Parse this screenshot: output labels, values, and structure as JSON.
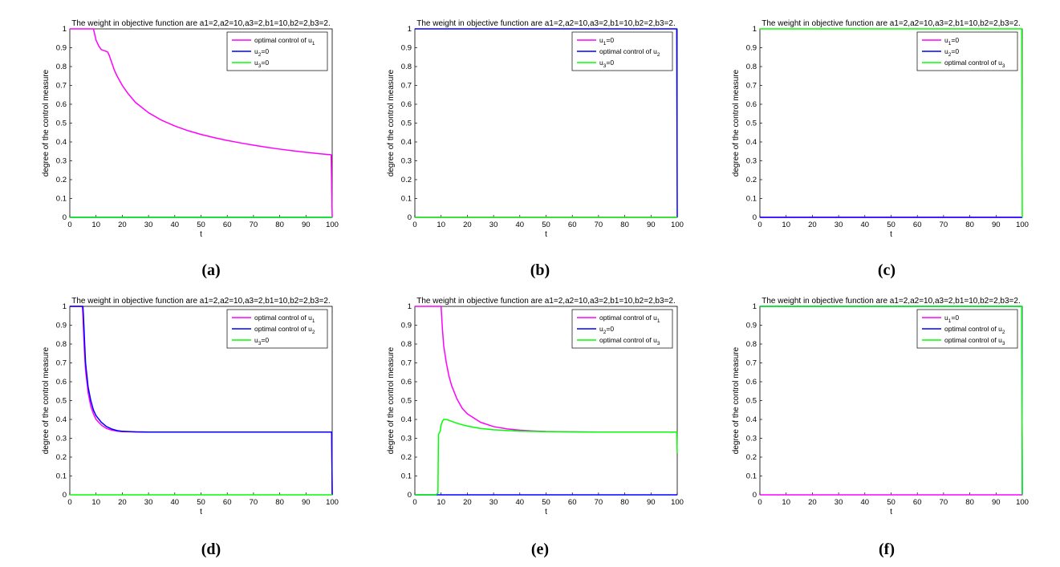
{
  "chart_data": [
    {
      "type": "line",
      "caption": "(a)",
      "title": "The weight in objective function are a1=2,a2=10,a3=2,b1=10,b2=2,b3=2.",
      "xlabel": "t",
      "ylabel": "degree of the control measure",
      "xlim": [
        0,
        100
      ],
      "ylim": [
        0,
        1
      ],
      "xticks": [
        "0",
        "10",
        "20",
        "30",
        "40",
        "50",
        "60",
        "70",
        "80",
        "90",
        "100"
      ],
      "yticks": [
        "0",
        "0.1",
        "0.2",
        "0.3",
        "0.4",
        "0.5",
        "0.6",
        "0.7",
        "0.8",
        "0.9",
        "1"
      ],
      "legend_position": "top-right",
      "series": [
        {
          "name": "optimal control of u1",
          "label": "optimal control of u",
          "sub": "1",
          "color": "#ff00ff",
          "points": [
            [
              0,
              1
            ],
            [
              9,
              1
            ],
            [
              10,
              0.94
            ],
            [
              11,
              0.91
            ],
            [
              12,
              0.89
            ],
            [
              13,
              0.885
            ],
            [
              14,
              0.88
            ],
            [
              14.5,
              0.876
            ],
            [
              15,
              0.86
            ],
            [
              16,
              0.82
            ],
            [
              17,
              0.78
            ],
            [
              18,
              0.75
            ],
            [
              20,
              0.7
            ],
            [
              22,
              0.66
            ],
            [
              25,
              0.61
            ],
            [
              30,
              0.555
            ],
            [
              35,
              0.515
            ],
            [
              40,
              0.485
            ],
            [
              45,
              0.46
            ],
            [
              50,
              0.44
            ],
            [
              55,
              0.423
            ],
            [
              60,
              0.408
            ],
            [
              65,
              0.395
            ],
            [
              70,
              0.383
            ],
            [
              75,
              0.372
            ],
            [
              80,
              0.362
            ],
            [
              85,
              0.353
            ],
            [
              90,
              0.345
            ],
            [
              95,
              0.338
            ],
            [
              99.6,
              0.332
            ],
            [
              100,
              0
            ]
          ]
        },
        {
          "name": "u2=0",
          "label": "u",
          "sub": "2",
          "suffix": "=0",
          "color": "#0000ff",
          "points": [
            [
              0,
              0
            ],
            [
              100,
              0
            ]
          ]
        },
        {
          "name": "u3=0",
          "label": "u",
          "sub": "3",
          "suffix": "=0",
          "color": "#00ff00",
          "points": [
            [
              0,
              0
            ],
            [
              100,
              0
            ]
          ]
        }
      ]
    },
    {
      "type": "line",
      "caption": "(b)",
      "title": "The weight in objective function are a1=2,a2=10,a3=2,b1=10,b2=2,b3=2.",
      "xlabel": "t",
      "ylabel": "degree of the control measure",
      "xlim": [
        0,
        100
      ],
      "ylim": [
        0,
        1
      ],
      "xticks": [
        "0",
        "10",
        "20",
        "30",
        "40",
        "50",
        "60",
        "70",
        "80",
        "90",
        "100"
      ],
      "yticks": [
        "0",
        "0.1",
        "0.2",
        "0.3",
        "0.4",
        "0.5",
        "0.6",
        "0.7",
        "0.8",
        "0.9",
        "1"
      ],
      "legend_position": "top-right",
      "series": [
        {
          "name": "u1=0",
          "label": "u",
          "sub": "1",
          "suffix": "=0",
          "color": "#ff00ff",
          "points": [
            [
              0,
              0
            ],
            [
              100,
              0
            ]
          ]
        },
        {
          "name": "optimal control of u2",
          "label": "optimal control of u",
          "sub": "2",
          "color": "#0000ff",
          "points": [
            [
              0,
              1
            ],
            [
              99.8,
              1
            ],
            [
              100,
              0
            ]
          ]
        },
        {
          "name": "u3=0",
          "label": "u",
          "sub": "3",
          "suffix": "=0",
          "color": "#00ff00",
          "points": [
            [
              0,
              0
            ],
            [
              100,
              0
            ]
          ]
        }
      ]
    },
    {
      "type": "line",
      "caption": "(c)",
      "title": "The weight in objective function are a1=2,a2=10,a3=2,b1=10,b2=2,b3=2.",
      "xlabel": "t",
      "ylabel": "degree of the control measure",
      "xlim": [
        0,
        100
      ],
      "ylim": [
        0,
        1
      ],
      "xticks": [
        "0",
        "10",
        "20",
        "30",
        "40",
        "50",
        "60",
        "70",
        "80",
        "90",
        "100"
      ],
      "yticks": [
        "0",
        "0.1",
        "0.2",
        "0.3",
        "0.4",
        "0.5",
        "0.6",
        "0.7",
        "0.8",
        "0.9",
        "1"
      ],
      "legend_position": "top-right",
      "series": [
        {
          "name": "u1=0",
          "label": "u",
          "sub": "1",
          "suffix": "=0",
          "color": "#ff00ff",
          "points": [
            [
              0,
              0
            ],
            [
              100,
              0
            ]
          ]
        },
        {
          "name": "u2=0",
          "label": "u",
          "sub": "2",
          "suffix": "=0",
          "color": "#0000ff",
          "points": [
            [
              0,
              0
            ],
            [
              100,
              0
            ]
          ]
        },
        {
          "name": "optimal control of u3",
          "label": "optimal control of u",
          "sub": "3",
          "color": "#00ff00",
          "points": [
            [
              0,
              1
            ],
            [
              99.8,
              1
            ],
            [
              100,
              0
            ]
          ]
        }
      ]
    },
    {
      "type": "line",
      "caption": "(d)",
      "title": "The weight in objective function are a1=2,a2=10,a3=2,b1=10,b2=2,b3=2.",
      "xlabel": "t",
      "ylabel": "degree of the control measure",
      "xlim": [
        0,
        100
      ],
      "ylim": [
        0,
        1
      ],
      "xticks": [
        "0",
        "10",
        "20",
        "30",
        "40",
        "50",
        "60",
        "70",
        "80",
        "90",
        "100"
      ],
      "yticks": [
        "0",
        "0.1",
        "0.2",
        "0.3",
        "0.4",
        "0.5",
        "0.6",
        "0.7",
        "0.8",
        "0.9",
        "1"
      ],
      "legend_position": "top-right",
      "series": [
        {
          "name": "optimal control of u1",
          "label": "optimal control of u",
          "sub": "1",
          "color": "#ff00ff",
          "points": [
            [
              0,
              1
            ],
            [
              4.8,
              1
            ],
            [
              5,
              0.95
            ],
            [
              5.5,
              0.78
            ],
            [
              6,
              0.66
            ],
            [
              7,
              0.54
            ],
            [
              8,
              0.47
            ],
            [
              9,
              0.43
            ],
            [
              10,
              0.4
            ],
            [
              12,
              0.37
            ],
            [
              14,
              0.352
            ],
            [
              16,
              0.343
            ],
            [
              18,
              0.338
            ],
            [
              20,
              0.335
            ],
            [
              25,
              0.334
            ],
            [
              30,
              0.333
            ],
            [
              99.8,
              0.333
            ],
            [
              100,
              0
            ]
          ]
        },
        {
          "name": "optimal control of u2",
          "label": "optimal control of u",
          "sub": "2",
          "color": "#0000ff",
          "points": [
            [
              0,
              1
            ],
            [
              5,
              1
            ],
            [
              5.2,
              0.95
            ],
            [
              5.7,
              0.79
            ],
            [
              6,
              0.7
            ],
            [
              7,
              0.57
            ],
            [
              8,
              0.5
            ],
            [
              9,
              0.45
            ],
            [
              10,
              0.42
            ],
            [
              12,
              0.385
            ],
            [
              14,
              0.362
            ],
            [
              16,
              0.349
            ],
            [
              18,
              0.341
            ],
            [
              20,
              0.337
            ],
            [
              25,
              0.334
            ],
            [
              30,
              0.333
            ],
            [
              99.8,
              0.333
            ],
            [
              100,
              0
            ]
          ]
        },
        {
          "name": "u3=0",
          "label": "u",
          "sub": "3",
          "suffix": "=0",
          "color": "#00ff00",
          "points": [
            [
              0,
              0
            ],
            [
              100,
              0
            ]
          ]
        }
      ]
    },
    {
      "type": "line",
      "caption": "(e)",
      "title": "The weight in objective function are a1=2,a2=10,a3=2,b1=10,b2=2,b3=2.",
      "xlabel": "t",
      "ylabel": "degree of the control measure",
      "xlim": [
        0,
        100
      ],
      "ylim": [
        0,
        1
      ],
      "xticks": [
        "0",
        "10",
        "20",
        "30",
        "40",
        "50",
        "60",
        "70",
        "80",
        "90",
        "100"
      ],
      "yticks": [
        "0",
        "0.1",
        "0.2",
        "0.3",
        "0.4",
        "0.5",
        "0.6",
        "0.7",
        "0.8",
        "0.9",
        "1"
      ],
      "legend_position": "top-right",
      "series": [
        {
          "name": "optimal control of u1",
          "label": "optimal control of u",
          "sub": "1",
          "color": "#ff00ff",
          "points": [
            [
              0,
              1
            ],
            [
              10,
              1
            ],
            [
              10.5,
              0.88
            ],
            [
              11,
              0.79
            ],
            [
              12,
              0.7
            ],
            [
              13,
              0.63
            ],
            [
              14,
              0.58
            ],
            [
              16,
              0.51
            ],
            [
              18,
              0.46
            ],
            [
              20,
              0.43
            ],
            [
              25,
              0.385
            ],
            [
              30,
              0.362
            ],
            [
              35,
              0.35
            ],
            [
              40,
              0.343
            ],
            [
              45,
              0.339
            ],
            [
              50,
              0.336
            ],
            [
              60,
              0.334
            ],
            [
              70,
              0.333
            ],
            [
              100,
              0.333
            ]
          ]
        },
        {
          "name": "u2=0",
          "label": "u",
          "sub": "2",
          "suffix": "=0",
          "color": "#0000ff",
          "points": [
            [
              0,
              0
            ],
            [
              100,
              0
            ]
          ]
        },
        {
          "name": "optimal control of u3",
          "label": "optimal control of u",
          "sub": "3",
          "color": "#00ff00",
          "points": [
            [
              0,
              0
            ],
            [
              8,
              0
            ],
            [
              8.8,
              0.01
            ],
            [
              9,
              0.32
            ],
            [
              9.7,
              0.34
            ],
            [
              10,
              0.37
            ],
            [
              10.5,
              0.39
            ],
            [
              11,
              0.4
            ],
            [
              12,
              0.4
            ],
            [
              14,
              0.39
            ],
            [
              16,
              0.38
            ],
            [
              18,
              0.372
            ],
            [
              20,
              0.365
            ],
            [
              25,
              0.352
            ],
            [
              30,
              0.345
            ],
            [
              40,
              0.338
            ],
            [
              50,
              0.335
            ],
            [
              60,
              0.334
            ],
            [
              70,
              0.333
            ],
            [
              99.8,
              0.333
            ],
            [
              100,
              0.22
            ]
          ]
        }
      ]
    },
    {
      "type": "line",
      "caption": "(f)",
      "title": "The weight in objective function are a1=2,a2=10,a3=2,b1=10,b2=2,b3=2.",
      "xlabel": "t",
      "ylabel": "degree of the control measure",
      "xlim": [
        0,
        100
      ],
      "ylim": [
        0,
        1
      ],
      "xticks": [
        "0",
        "10",
        "20",
        "30",
        "40",
        "50",
        "60",
        "70",
        "80",
        "90",
        "100"
      ],
      "yticks": [
        "0",
        "0.1",
        "0.2",
        "0.3",
        "0.4",
        "0.5",
        "0.6",
        "0.7",
        "0.8",
        "0.9",
        "1"
      ],
      "legend_position": "top-right",
      "series": [
        {
          "name": "u1=0",
          "label": "u",
          "sub": "1",
          "suffix": "=0",
          "color": "#ff00ff",
          "points": [
            [
              0,
              0
            ],
            [
              100,
              0
            ]
          ]
        },
        {
          "name": "optimal control of u2",
          "label": "optimal control of u",
          "sub": "2",
          "color": "#0000ff",
          "points": [
            [
              0,
              1
            ],
            [
              99.8,
              1
            ],
            [
              100,
              0
            ]
          ]
        },
        {
          "name": "optimal control of u3",
          "label": "optimal control of u",
          "sub": "3",
          "color": "#00ff00",
          "points": [
            [
              0,
              1
            ],
            [
              99.8,
              1
            ],
            [
              100,
              0
            ]
          ]
        }
      ]
    }
  ]
}
